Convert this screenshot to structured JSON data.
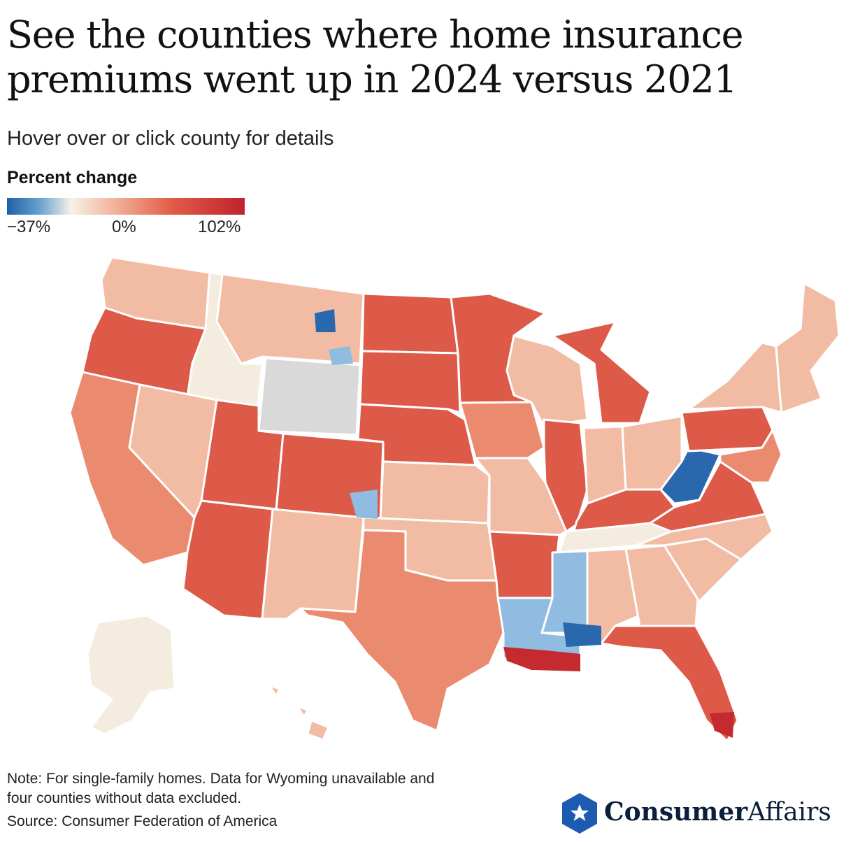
{
  "title": {
    "line1": "See the counties where home insurance",
    "line2": "premiums went up in 2024 versus 2021"
  },
  "subtitle": "Hover over or click county for details",
  "legend": {
    "title": "Percent change",
    "min_label": "−37%",
    "mid_label": "0%",
    "max_label": "102%",
    "min_value": -37,
    "mid_value": 0,
    "max_value": 102,
    "colors": [
      "#1f5fa8",
      "#6aa3d0",
      "#f7f1e6",
      "#f2b49a",
      "#e05a46",
      "#c0232e"
    ]
  },
  "map_colors": {
    "no_data": "#d9d9d9",
    "decrease_strong": "#2a68ad",
    "decrease_light": "#8fbce0",
    "flat": "#f5ece0",
    "increase_light": "#f2bca4",
    "increase_mid": "#ea8a6e",
    "increase_high": "#dd5a48",
    "increase_max": "#c42a2f",
    "border": "#ffffff"
  },
  "note": {
    "line1": "Note: For single-family homes. Data for Wyoming unavailable and",
    "line2": "four counties without data excluded."
  },
  "source": "Source: Consumer Federation of America",
  "brand": {
    "part1": "Consumer",
    "part2": "Affairs",
    "icon": "star-shield-icon",
    "color": "#1c5bb0"
  }
}
